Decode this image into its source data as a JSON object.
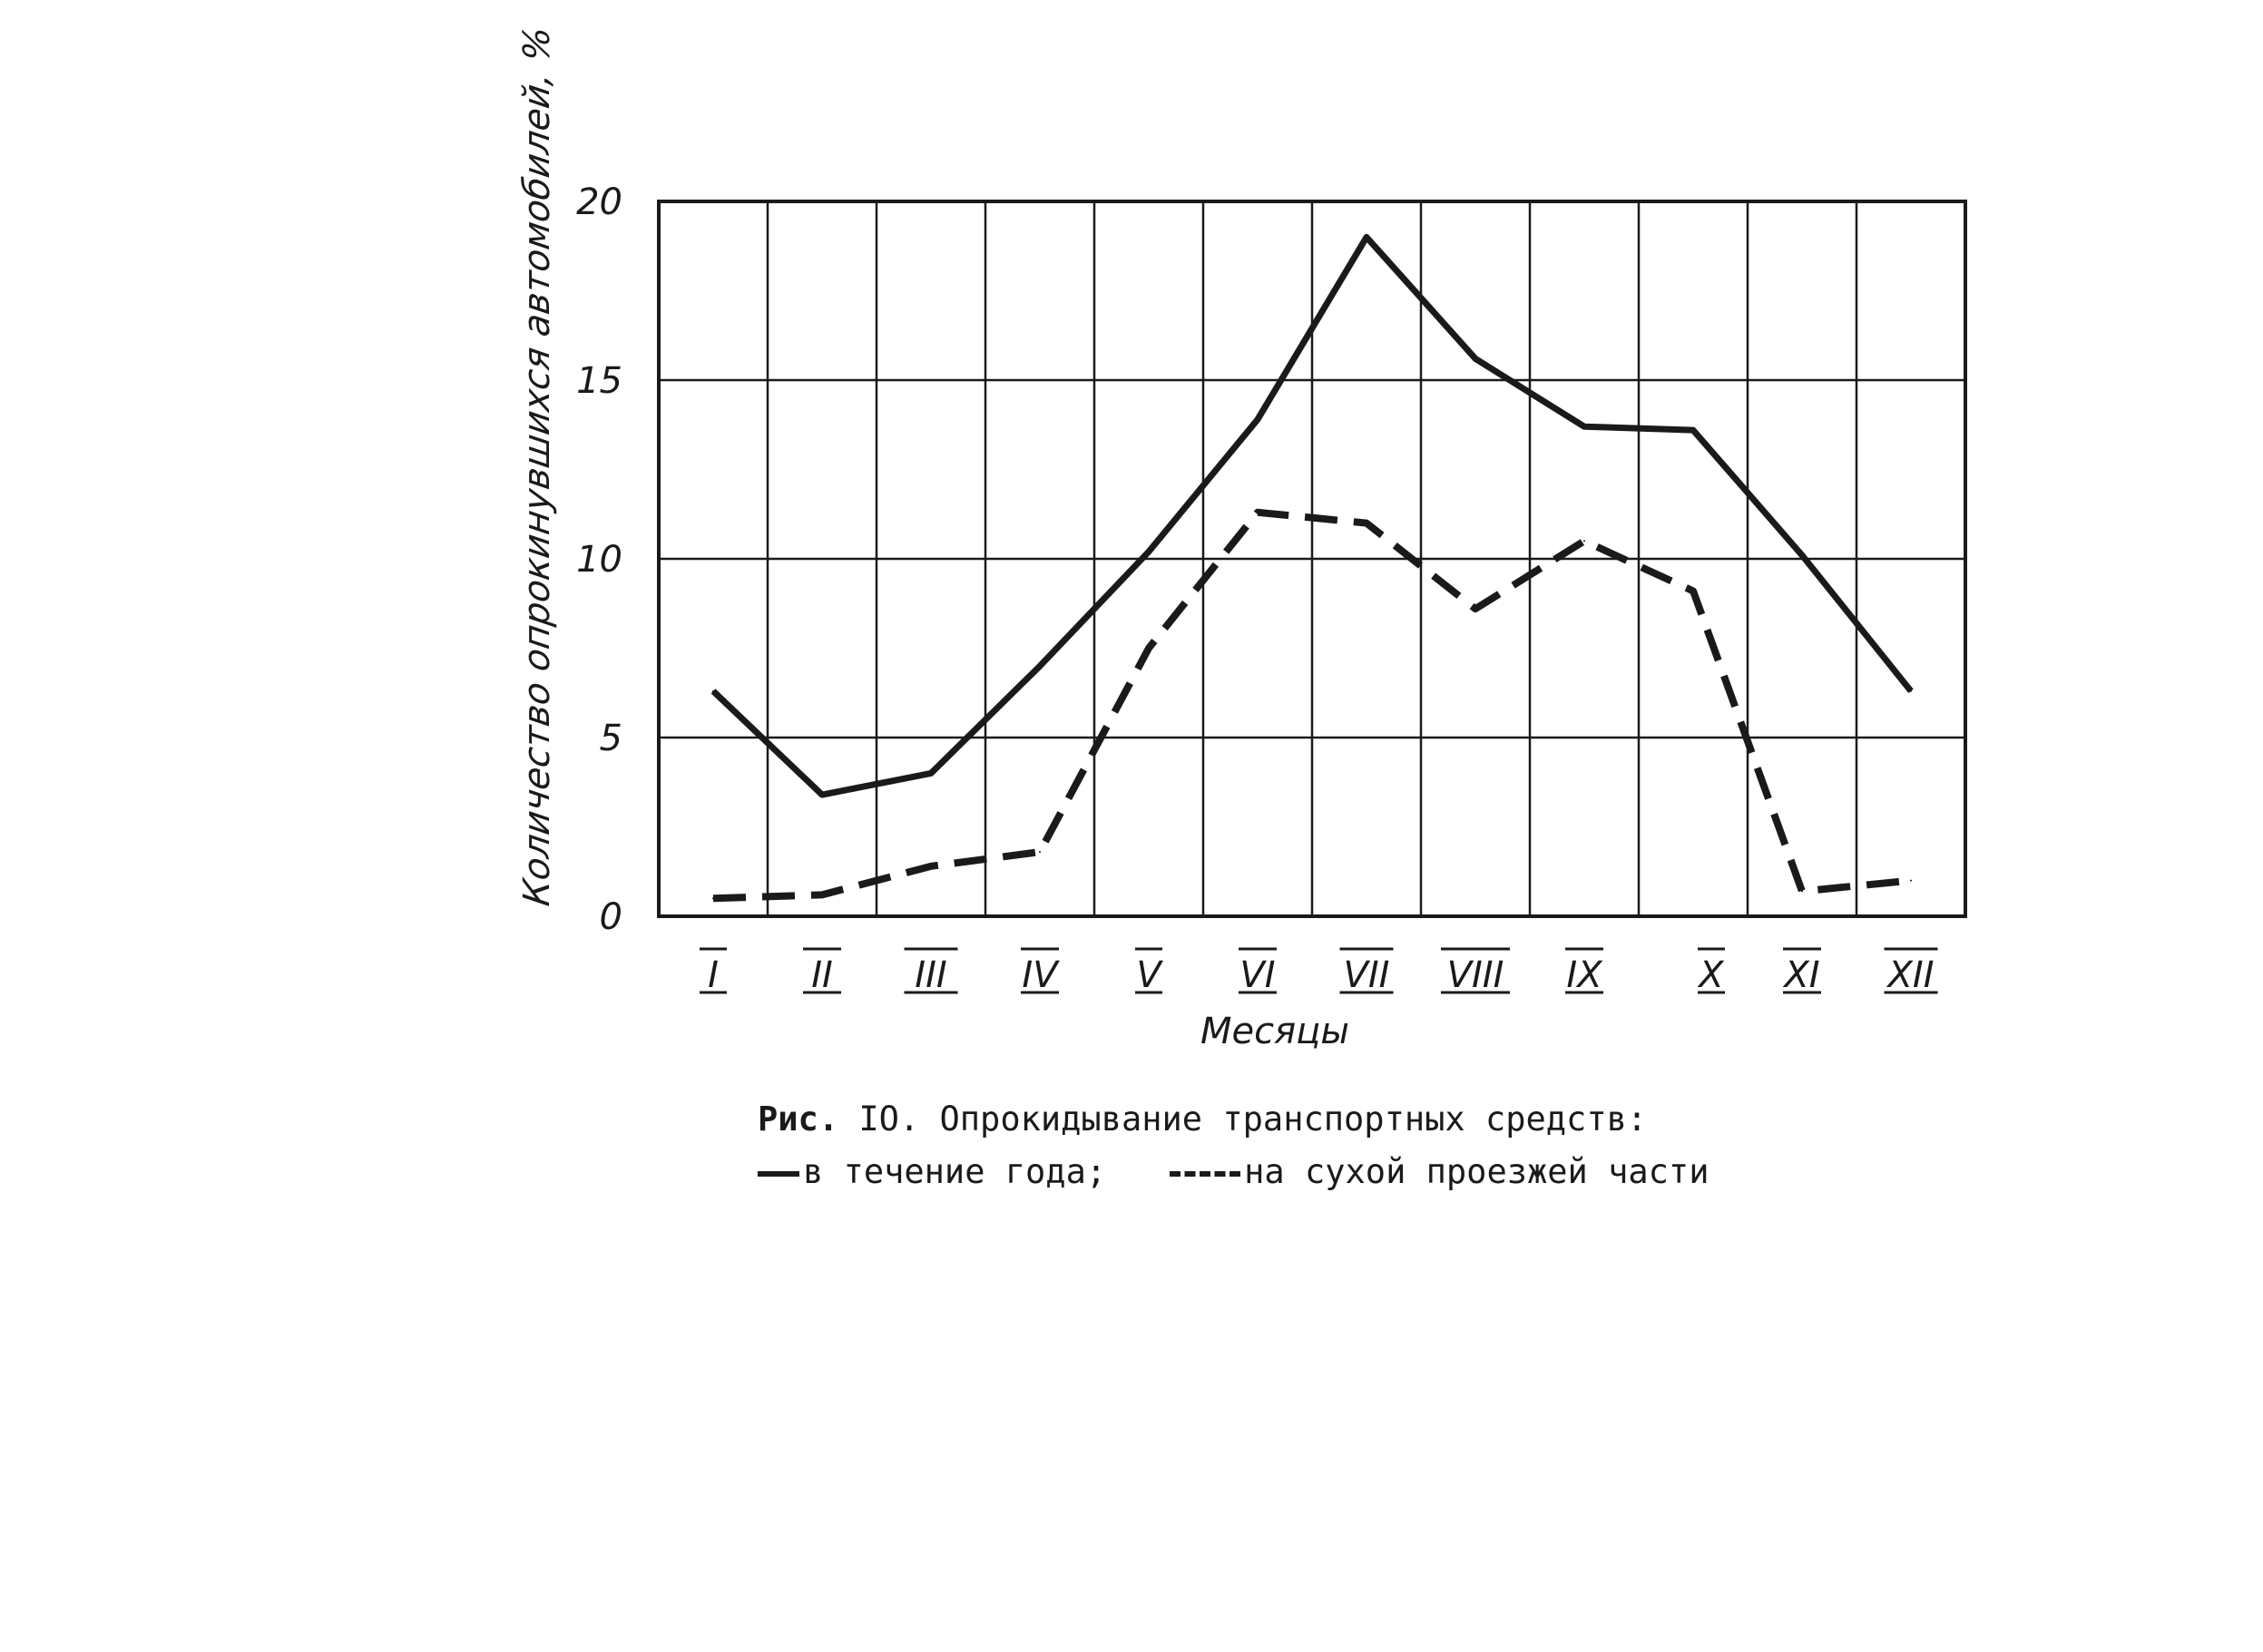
{
  "chart_data": {
    "type": "line",
    "ylabel": "Количество опрокинувшихся автомобилей, %",
    "xlabel": "Месяцы",
    "ylim": [
      0,
      20
    ],
    "yticks": [
      "0",
      "5",
      "10",
      "15",
      "20"
    ],
    "categories": [
      "I",
      "II",
      "III",
      "IV",
      "V",
      "VI",
      "VII",
      "VIII",
      "IX",
      "X",
      "XI",
      "XII"
    ],
    "grid": true,
    "series": [
      {
        "name": "в течение года",
        "style": "solid",
        "values": [
          6.3,
          3.4,
          4.0,
          7.0,
          10.2,
          13.9,
          19.0,
          15.6,
          13.7,
          13.6,
          10.1,
          6.3
        ]
      },
      {
        "name": "на сухой проезжей части",
        "style": "dashed",
        "values": [
          0.5,
          0.6,
          1.4,
          1.8,
          7.5,
          11.3,
          11.0,
          8.6,
          10.5,
          9.1,
          0.7,
          1.0
        ]
      }
    ]
  },
  "caption": {
    "label": "Рис.",
    "number": "IO.",
    "title": "Опрокидывание транспортных средств:",
    "legend_solid": "в течение года;",
    "legend_dashed": "на сухой проезжей части"
  },
  "colors": {
    "ink": "#1a1a1a"
  }
}
